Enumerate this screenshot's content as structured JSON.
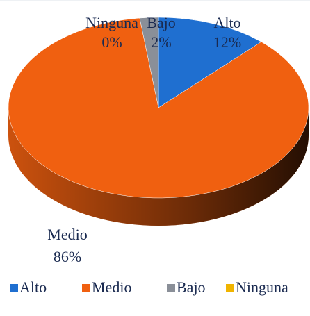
{
  "chart_data": {
    "type": "pie",
    "categories": [
      "Alto",
      "Medio",
      "Bajo",
      "Ninguna"
    ],
    "values": [
      12,
      86,
      2,
      0
    ],
    "value_labels": [
      "12%",
      "86%",
      "2%",
      "0%"
    ],
    "colors": [
      "#1f6fd0",
      "#f06010",
      "#8a8f98",
      "#f0b400"
    ],
    "legend": "bottom"
  }
}
